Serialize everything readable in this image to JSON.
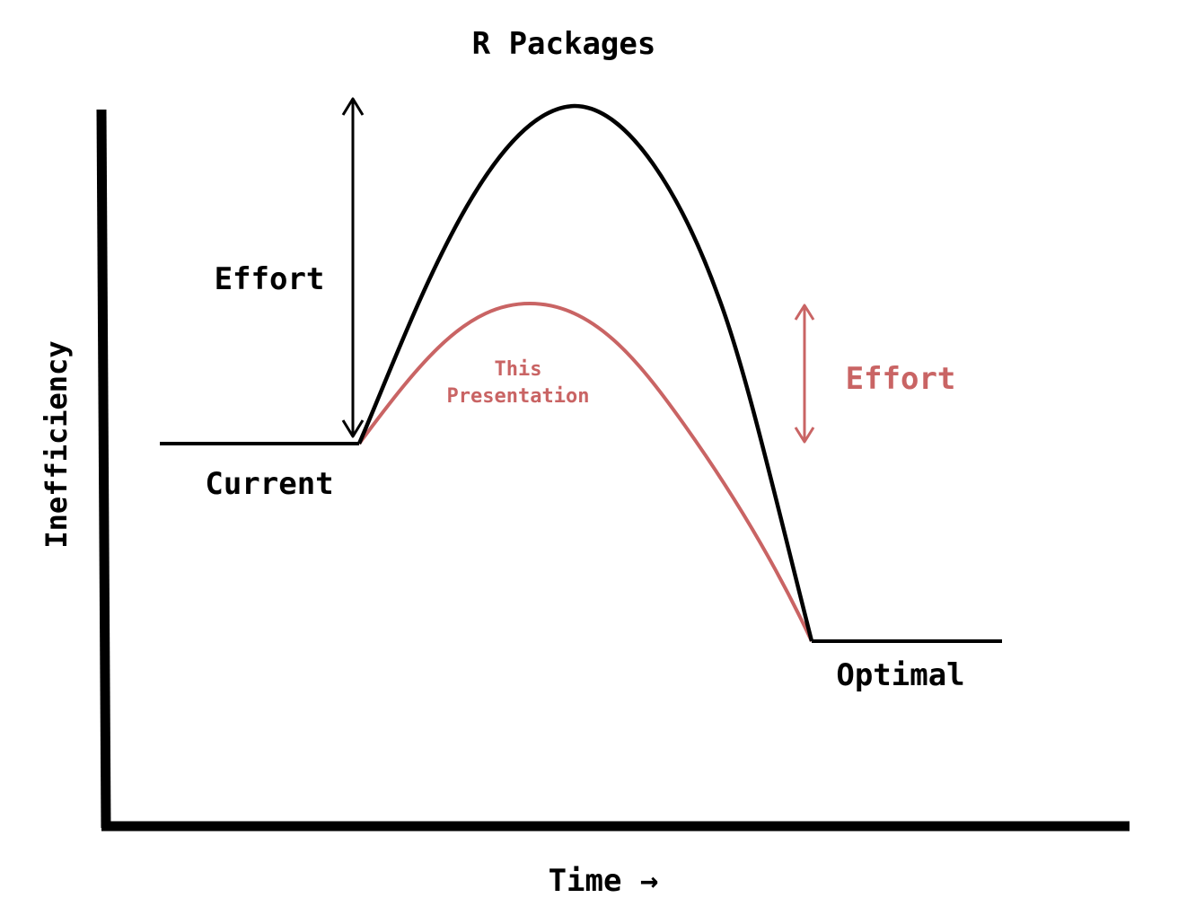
{
  "title": "R Packages",
  "axes": {
    "y_label": "Inefficiency",
    "x_label": "Time →"
  },
  "levels": {
    "current_label": "Current",
    "optimal_label": "Optimal"
  },
  "annotations": {
    "effort_black": "Effort",
    "effort_red": "Effort",
    "this_line1": "This",
    "this_line2": "Presentation"
  },
  "colors": {
    "ink": "#000000",
    "accent": "#c96464"
  }
}
